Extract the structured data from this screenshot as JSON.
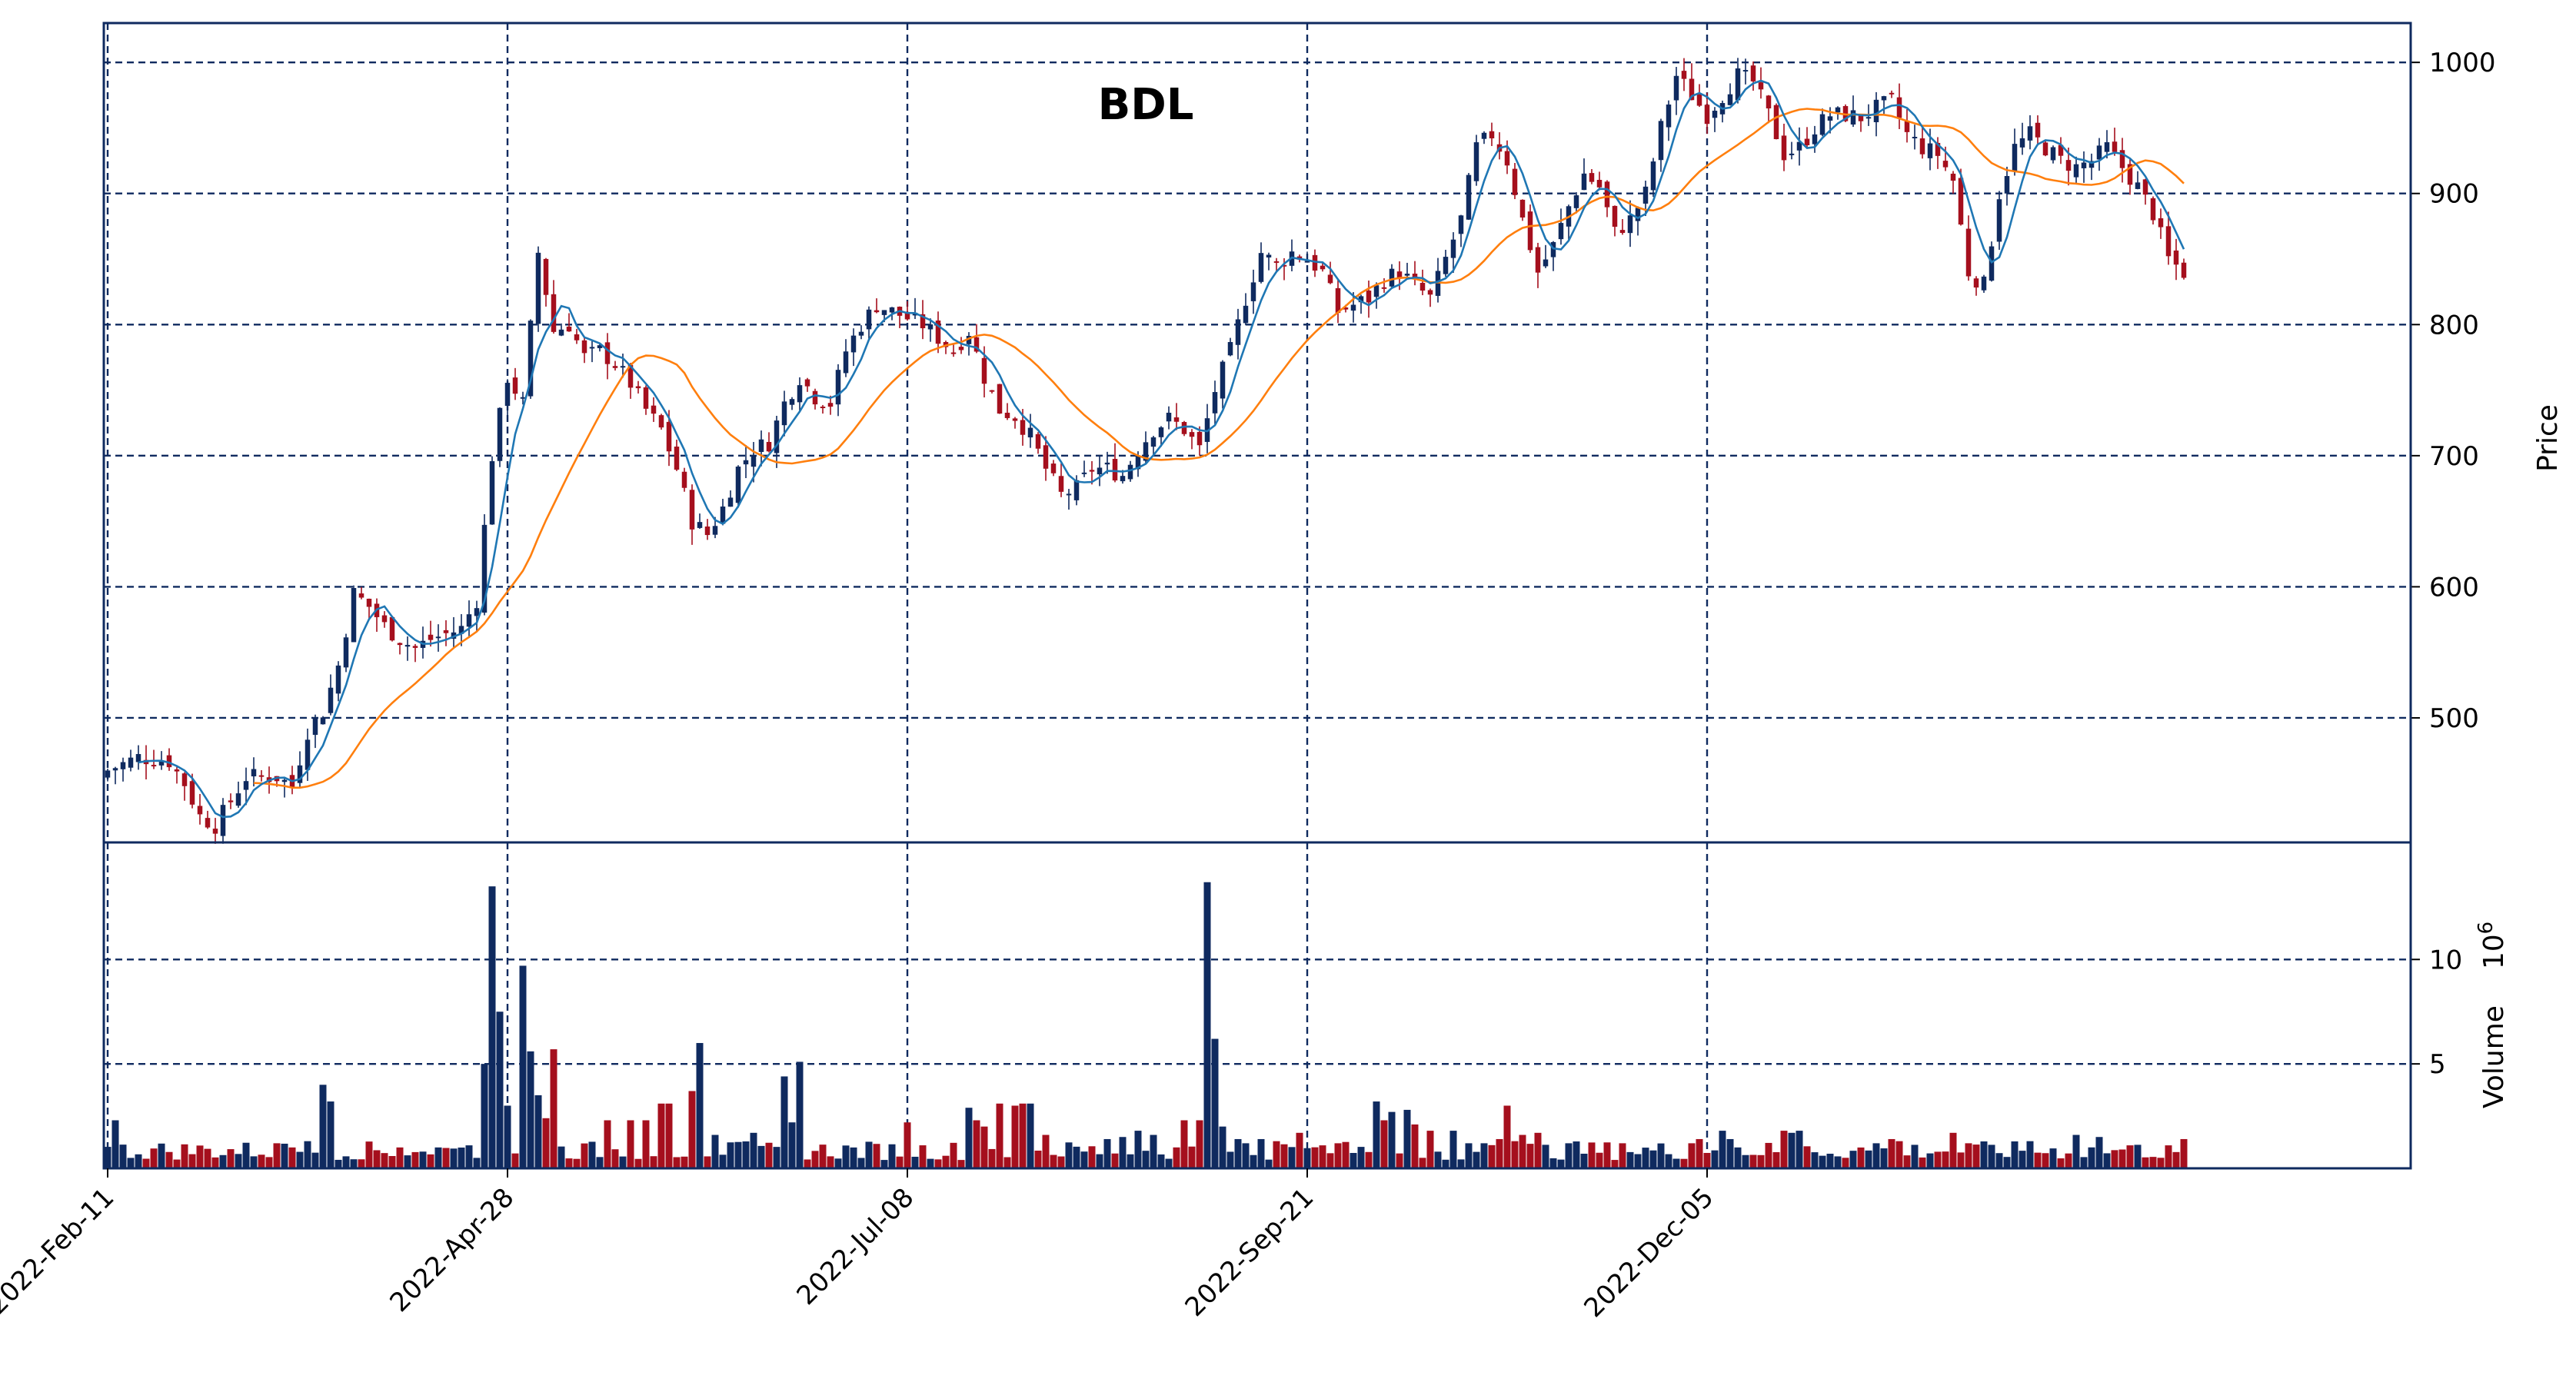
{
  "chart_data": {
    "type": "candlestick",
    "title": "BDL",
    "price_axis": {
      "label": "Price",
      "ticks": [
        500,
        600,
        700,
        800,
        900,
        1000
      ],
      "ylim": [
        405,
        1030
      ],
      "grid": true
    },
    "volume_axis": {
      "label": "Volume",
      "unit_label": "10^6",
      "ticks": [
        5,
        10
      ],
      "ylim": [
        0,
        14.5
      ],
      "grid": true
    },
    "x_axis": {
      "tick_labels": [
        "2022-Feb-11",
        "2022-Apr-28",
        "2022-Jul-08",
        "2022-Sep-21",
        "2022-Dec-05"
      ],
      "tick_index": [
        0,
        52,
        104,
        156,
        208
      ],
      "n_points": 259
    },
    "colors": {
      "up": "#0f2a5f",
      "down": "#a50f1d",
      "short_ma": "#1f77b4",
      "long_ma": "#ff7f0e",
      "frame": "#0f2a5f"
    },
    "moving_averages": [
      {
        "window": 5,
        "color": "#1f77b4"
      },
      {
        "window": 20,
        "color": "#ff7f0e"
      }
    ],
    "price_anchors": [
      [
        0,
        460
      ],
      [
        4,
        470
      ],
      [
        8,
        467
      ],
      [
        10,
        450
      ],
      [
        12,
        425
      ],
      [
        14,
        418
      ],
      [
        18,
        455
      ],
      [
        22,
        455
      ],
      [
        24,
        448
      ],
      [
        26,
        490
      ],
      [
        28,
        505
      ],
      [
        30,
        540
      ],
      [
        32,
        595
      ],
      [
        34,
        585
      ],
      [
        36,
        570
      ],
      [
        38,
        560
      ],
      [
        40,
        553
      ],
      [
        42,
        560
      ],
      [
        46,
        568
      ],
      [
        48,
        590
      ],
      [
        50,
        700
      ],
      [
        52,
        760
      ],
      [
        54,
        740
      ],
      [
        56,
        855
      ],
      [
        58,
        795
      ],
      [
        60,
        800
      ],
      [
        62,
        775
      ],
      [
        64,
        780
      ],
      [
        66,
        770
      ],
      [
        68,
        755
      ],
      [
        70,
        735
      ],
      [
        72,
        720
      ],
      [
        74,
        690
      ],
      [
        76,
        650
      ],
      [
        78,
        640
      ],
      [
        80,
        660
      ],
      [
        82,
        690
      ],
      [
        84,
        705
      ],
      [
        86,
        710
      ],
      [
        88,
        740
      ],
      [
        90,
        760
      ],
      [
        92,
        745
      ],
      [
        94,
        740
      ],
      [
        96,
        780
      ],
      [
        98,
        800
      ],
      [
        100,
        815
      ],
      [
        102,
        810
      ],
      [
        104,
        805
      ],
      [
        106,
        800
      ],
      [
        108,
        790
      ],
      [
        110,
        780
      ],
      [
        112,
        795
      ],
      [
        114,
        760
      ],
      [
        116,
        735
      ],
      [
        118,
        730
      ],
      [
        120,
        715
      ],
      [
        122,
        690
      ],
      [
        124,
        670
      ],
      [
        126,
        675
      ],
      [
        128,
        690
      ],
      [
        130,
        690
      ],
      [
        132,
        685
      ],
      [
        134,
        705
      ],
      [
        136,
        720
      ],
      [
        138,
        728
      ],
      [
        140,
        720
      ],
      [
        142,
        705
      ],
      [
        144,
        750
      ],
      [
        146,
        780
      ],
      [
        148,
        820
      ],
      [
        150,
        855
      ],
      [
        152,
        845
      ],
      [
        154,
        855
      ],
      [
        156,
        850
      ],
      [
        158,
        840
      ],
      [
        160,
        810
      ],
      [
        162,
        815
      ],
      [
        164,
        820
      ],
      [
        166,
        835
      ],
      [
        168,
        840
      ],
      [
        170,
        830
      ],
      [
        172,
        820
      ],
      [
        174,
        850
      ],
      [
        176,
        880
      ],
      [
        178,
        935
      ],
      [
        180,
        945
      ],
      [
        182,
        925
      ],
      [
        184,
        880
      ],
      [
        186,
        840
      ],
      [
        188,
        860
      ],
      [
        190,
        890
      ],
      [
        192,
        915
      ],
      [
        194,
        905
      ],
      [
        196,
        870
      ],
      [
        198,
        880
      ],
      [
        200,
        900
      ],
      [
        202,
        950
      ],
      [
        204,
        990
      ],
      [
        206,
        975
      ],
      [
        208,
        960
      ],
      [
        210,
        975
      ],
      [
        212,
        990
      ],
      [
        214,
        985
      ],
      [
        216,
        960
      ],
      [
        218,
        930
      ],
      [
        220,
        935
      ],
      [
        222,
        950
      ],
      [
        224,
        960
      ],
      [
        226,
        960
      ],
      [
        228,
        958
      ],
      [
        230,
        965
      ],
      [
        232,
        970
      ],
      [
        234,
        945
      ],
      [
        236,
        935
      ],
      [
        238,
        930
      ],
      [
        240,
        910
      ],
      [
        242,
        840
      ],
      [
        244,
        830
      ],
      [
        246,
        900
      ],
      [
        248,
        935
      ],
      [
        250,
        945
      ],
      [
        252,
        935
      ],
      [
        254,
        925
      ],
      [
        256,
        920
      ],
      [
        258,
        925
      ],
      [
        260,
        935
      ],
      [
        262,
        920
      ],
      [
        264,
        905
      ],
      [
        266,
        885
      ],
      [
        268,
        850
      ],
      [
        270,
        840
      ]
    ],
    "volume_spikes": [
      [
        1,
        2.3
      ],
      [
        22,
        1.2
      ],
      [
        24,
        1.0
      ],
      [
        26,
        1.3
      ],
      [
        28,
        4.0
      ],
      [
        29,
        3.2
      ],
      [
        38,
        1.0
      ],
      [
        41,
        0.8
      ],
      [
        43,
        1.0
      ],
      [
        47,
        1.1
      ],
      [
        49,
        5.0
      ],
      [
        50,
        13.5
      ],
      [
        51,
        7.5
      ],
      [
        52,
        3.0
      ],
      [
        54,
        9.7
      ],
      [
        55,
        5.6
      ],
      [
        56,
        3.5
      ],
      [
        57,
        2.4
      ],
      [
        58,
        5.7
      ],
      [
        65,
        2.3
      ],
      [
        68,
        2.3
      ],
      [
        70,
        2.3
      ],
      [
        72,
        3.1
      ],
      [
        73,
        3.1
      ],
      [
        76,
        3.7
      ],
      [
        77,
        6.0
      ],
      [
        79,
        1.6
      ],
      [
        84,
        1.7
      ],
      [
        88,
        4.4
      ],
      [
        89,
        2.2
      ],
      [
        90,
        5.1
      ],
      [
        104,
        2.2
      ],
      [
        112,
        2.9
      ],
      [
        113,
        2.3
      ],
      [
        114,
        2.0
      ],
      [
        116,
        3.1
      ],
      [
        118,
        3.0
      ],
      [
        119,
        3.1
      ],
      [
        120,
        3.1
      ],
      [
        122,
        1.6
      ],
      [
        130,
        1.4
      ],
      [
        132,
        1.5
      ],
      [
        134,
        1.8
      ],
      [
        136,
        1.6
      ],
      [
        140,
        2.3
      ],
      [
        142,
        2.3
      ],
      [
        143,
        13.7
      ],
      [
        144,
        6.2
      ],
      [
        145,
        2.0
      ],
      [
        147,
        1.4
      ],
      [
        148,
        1.2
      ],
      [
        150,
        1.4
      ],
      [
        152,
        1.3
      ],
      [
        155,
        1.7
      ],
      [
        158,
        1.1
      ],
      [
        160,
        1.2
      ],
      [
        165,
        3.2
      ],
      [
        166,
        2.3
      ],
      [
        167,
        2.7
      ],
      [
        169,
        2.8
      ],
      [
        170,
        2.1
      ],
      [
        172,
        1.8
      ],
      [
        175,
        1.8
      ],
      [
        177,
        1.2
      ],
      [
        179,
        1.2
      ],
      [
        181,
        1.4
      ],
      [
        182,
        3.0
      ],
      [
        183,
        1.3
      ],
      [
        184,
        1.6
      ],
      [
        186,
        1.7
      ],
      [
        190,
        1.2
      ],
      [
        197,
        1.2
      ],
      [
        206,
        1.2
      ],
      [
        207,
        1.4
      ],
      [
        210,
        1.8
      ],
      [
        211,
        1.4
      ],
      [
        212,
        1.0
      ],
      [
        218,
        1.8
      ],
      [
        219,
        1.7
      ],
      [
        220,
        1.8
      ],
      [
        230,
        1.2
      ],
      [
        232,
        1.4
      ],
      [
        233,
        1.3
      ],
      [
        240,
        1.7
      ],
      [
        242,
        1.2
      ],
      [
        250,
        1.3
      ],
      [
        256,
        1.6
      ],
      [
        259,
        1.5
      ],
      [
        263,
        1.1
      ],
      [
        268,
        1.1
      ],
      [
        270,
        1.4
      ],
      [
        272,
        1.2
      ]
    ]
  }
}
